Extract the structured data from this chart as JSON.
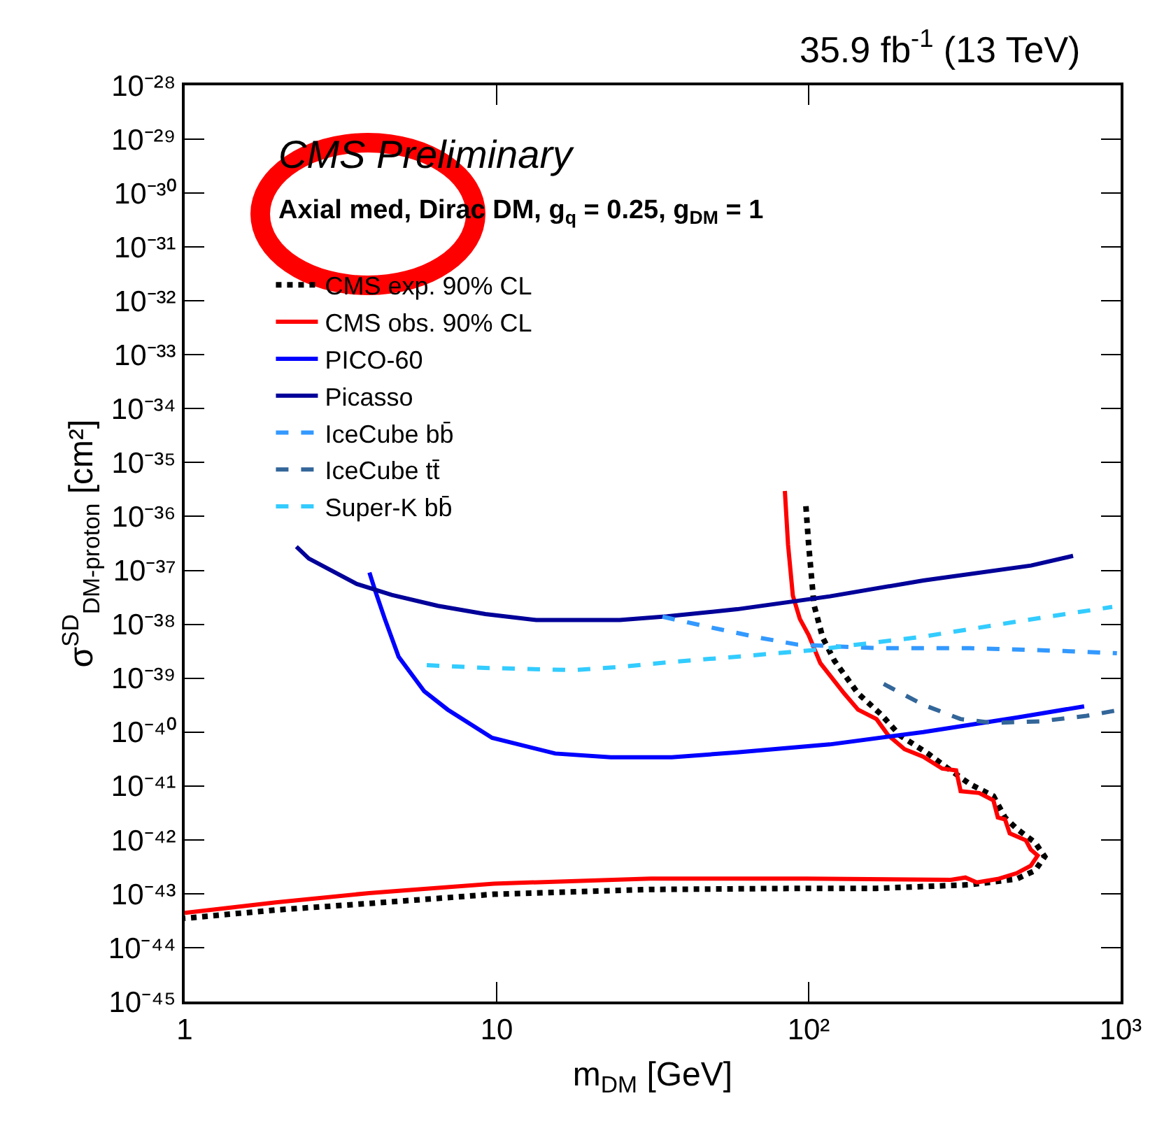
{
  "chart_data": {
    "type": "line",
    "title": "35.9 fb$^{-1}$ (13 TeV)",
    "xlabel": "m$_{DM}$ [GeV]",
    "ylabel": "σ$^{SD}$$_{DM-proton}$ [cm²]",
    "annotations": [
      "CMS Preliminary",
      "Axial med, Dirac DM, g$_{q}$ = 0.25, g$_{DM}$ = 1"
    ],
    "log": "xy",
    "grid": false,
    "legend": "top left",
    "marker": "none",
    "xlim": [
      1,
      1000
    ],
    "xticks": [
      1,
      10,
      {
        "value": 100,
        "label": "10²"
      },
      {
        "value": 1000,
        "label": "10³"
      }
    ],
    "ylim": [
      1e-45,
      1e-28
    ],
    "yticks": [
      {
        "value": 1e-45,
        "label": "10⁻⁴⁵"
      },
      {
        "value": 1e-44,
        "label": "10⁻⁴⁴"
      },
      {
        "value": 1e-43,
        "label": "10⁻⁴³"
      },
      {
        "value": 1e-42,
        "label": "10⁻⁴²"
      },
      {
        "value": 1e-41,
        "label": "10⁻⁴¹"
      },
      {
        "value": 1e-40,
        "label": "10⁻⁴⁰"
      },
      {
        "value": 1e-39,
        "label": "10⁻³⁹"
      },
      {
        "value": 1e-38,
        "label": "10⁻³⁸"
      },
      {
        "value": 1e-37,
        "label": "10⁻³⁷"
      },
      {
        "value": 1e-36,
        "label": "10⁻³⁶"
      },
      {
        "value": 1e-35,
        "label": "10⁻³⁵"
      },
      {
        "value": 1e-34,
        "label": "10⁻³⁴"
      },
      {
        "value": 1e-33,
        "label": "10⁻³³"
      },
      {
        "value": 1e-32,
        "label": "10⁻³²"
      },
      {
        "value": 1e-31,
        "label": "10⁻³¹"
      },
      {
        "value": 1e-30,
        "label": "10⁻³⁰"
      },
      {
        "value": 1e-29,
        "label": "10⁻²⁹"
      },
      {
        "value": 1e-28,
        "label": "10⁻²⁸"
      }
    ],
    "series": [
      {
        "name": "CMS exp. 90% CL",
        "color": "#000000",
        "line_style": "dotted",
        "x": [
          98,
          100,
          104,
          111,
          121,
          144,
          171,
          196,
          241,
          277,
          329,
          391,
          426,
          464,
          532,
          571,
          532,
          464,
          329,
          165,
          98.4,
          31.1,
          9.8,
          3.9,
          1.96,
          1
        ],
        "values": [
          1.55e-36,
          3e-37,
          2.3e-38,
          5.6e-39,
          2.1e-39,
          5.2e-40,
          2.1e-40,
          8.7e-41,
          4e-41,
          2.2e-41,
          1.08e-41,
          6.5e-42,
          2.6e-42,
          1.61e-42,
          8.9e-43,
          4.9e-43,
          2.7e-43,
          1.88e-43,
          1.47e-43,
          1.26e-43,
          1.26e-43,
          1.2e-43,
          9.8e-44,
          6.6e-44,
          5e-44,
          3.5e-44
        ]
      },
      {
        "name": "CMS obs. 90% CL",
        "color": "#ff0000",
        "line_style": "solid",
        "x": [
          83.9,
          85.9,
          89,
          93.7,
          100,
          109,
          130,
          144,
          165,
          180,
          203,
          233,
          268,
          297,
          307,
          352,
          391,
          404,
          426,
          441,
          497,
          515,
          542,
          515,
          464,
          404,
          346,
          318,
          286,
          98.4,
          31.1,
          9.8,
          3.9,
          1.96,
          1
        ],
        "values": [
          2.97e-36,
          3e-37,
          3.4e-38,
          1.26e-38,
          6.3e-39,
          1.9e-39,
          5.2e-40,
          2.6e-40,
          1.74e-40,
          8.7e-41,
          4.8e-41,
          3.5e-41,
          2.1e-41,
          1.95e-41,
          8e-42,
          7.4e-42,
          5.4e-42,
          2.6e-42,
          2.4e-42,
          1.32e-42,
          9.8e-43,
          6.6e-43,
          5.1e-43,
          3.3e-43,
          2.4e-43,
          1.88e-43,
          1.62e-43,
          2e-43,
          1.81e-43,
          1.91e-43,
          1.91e-43,
          1.54e-43,
          1.03e-43,
          6.9e-44,
          4.4e-44
        ]
      },
      {
        "name": "PICO-60",
        "color": "#0000ff",
        "line_style": "solid",
        "x": [
          3.91,
          4.08,
          4.38,
          4.85,
          5.86,
          6.97,
          9.67,
          15.4,
          23.2,
          36.4,
          58.9,
          117,
          233,
          464,
          764
        ],
        "values": [
          9.1e-38,
          4.2e-38,
          1.26e-38,
          2.5e-39,
          5.7e-40,
          2.6e-40,
          7.8e-41,
          4e-41,
          3.4e-41,
          3.4e-41,
          4.2e-41,
          5.9e-41,
          1e-40,
          1.86e-40,
          3e-40
        ]
      },
      {
        "name": "Picasso",
        "color": "#000099",
        "line_style": "solid",
        "x": [
          2.28,
          2.5,
          3.56,
          4.61,
          6.48,
          9.2,
          13.4,
          24.8,
          35.2,
          59,
          117,
          233,
          516,
          704
        ],
        "values": [
          2.75e-37,
          1.66e-37,
          5.6e-38,
          3.5e-38,
          2.2e-38,
          1.55e-38,
          1.2e-38,
          1.2e-38,
          1.4e-38,
          1.9e-38,
          3.3e-38,
          6.5e-38,
          1.23e-37,
          1.86e-37
        ]
      },
      {
        "name": "IceCube bb̄",
        "color": "#3399ff",
        "line_style": "dashed",
        "x": [
          34,
          46.2,
          69.9,
          92,
          165,
          329,
          655,
          973
        ],
        "values": [
          1.38e-38,
          9.3e-39,
          5.6e-39,
          4.2e-39,
          3.6e-39,
          3.6e-39,
          3.2e-39,
          2.9e-39
        ]
      },
      {
        "name": "IceCube tt̄",
        "color": "#336699",
        "line_style": "dashed",
        "x": [
          174,
          233,
          307,
          391,
          551,
          778,
          1000
        ],
        "values": [
          7.8e-40,
          3.2e-40,
          1.74e-40,
          1.48e-40,
          1.58e-40,
          2e-40,
          2.6e-40
        ]
      },
      {
        "name": "Super-K bb̄",
        "color": "#33ccff",
        "line_style": "dashed",
        "x": [
          5.97,
          9.18,
          17.7,
          24.9,
          36.4,
          58.9,
          102,
          233,
          464,
          940
        ],
        "values": [
          1.74e-39,
          1.55e-39,
          1.41e-39,
          1.62e-39,
          2e-39,
          2.5e-39,
          3.3e-39,
          5.9e-39,
          1.12e-38,
          2.1e-38
        ]
      }
    ]
  }
}
